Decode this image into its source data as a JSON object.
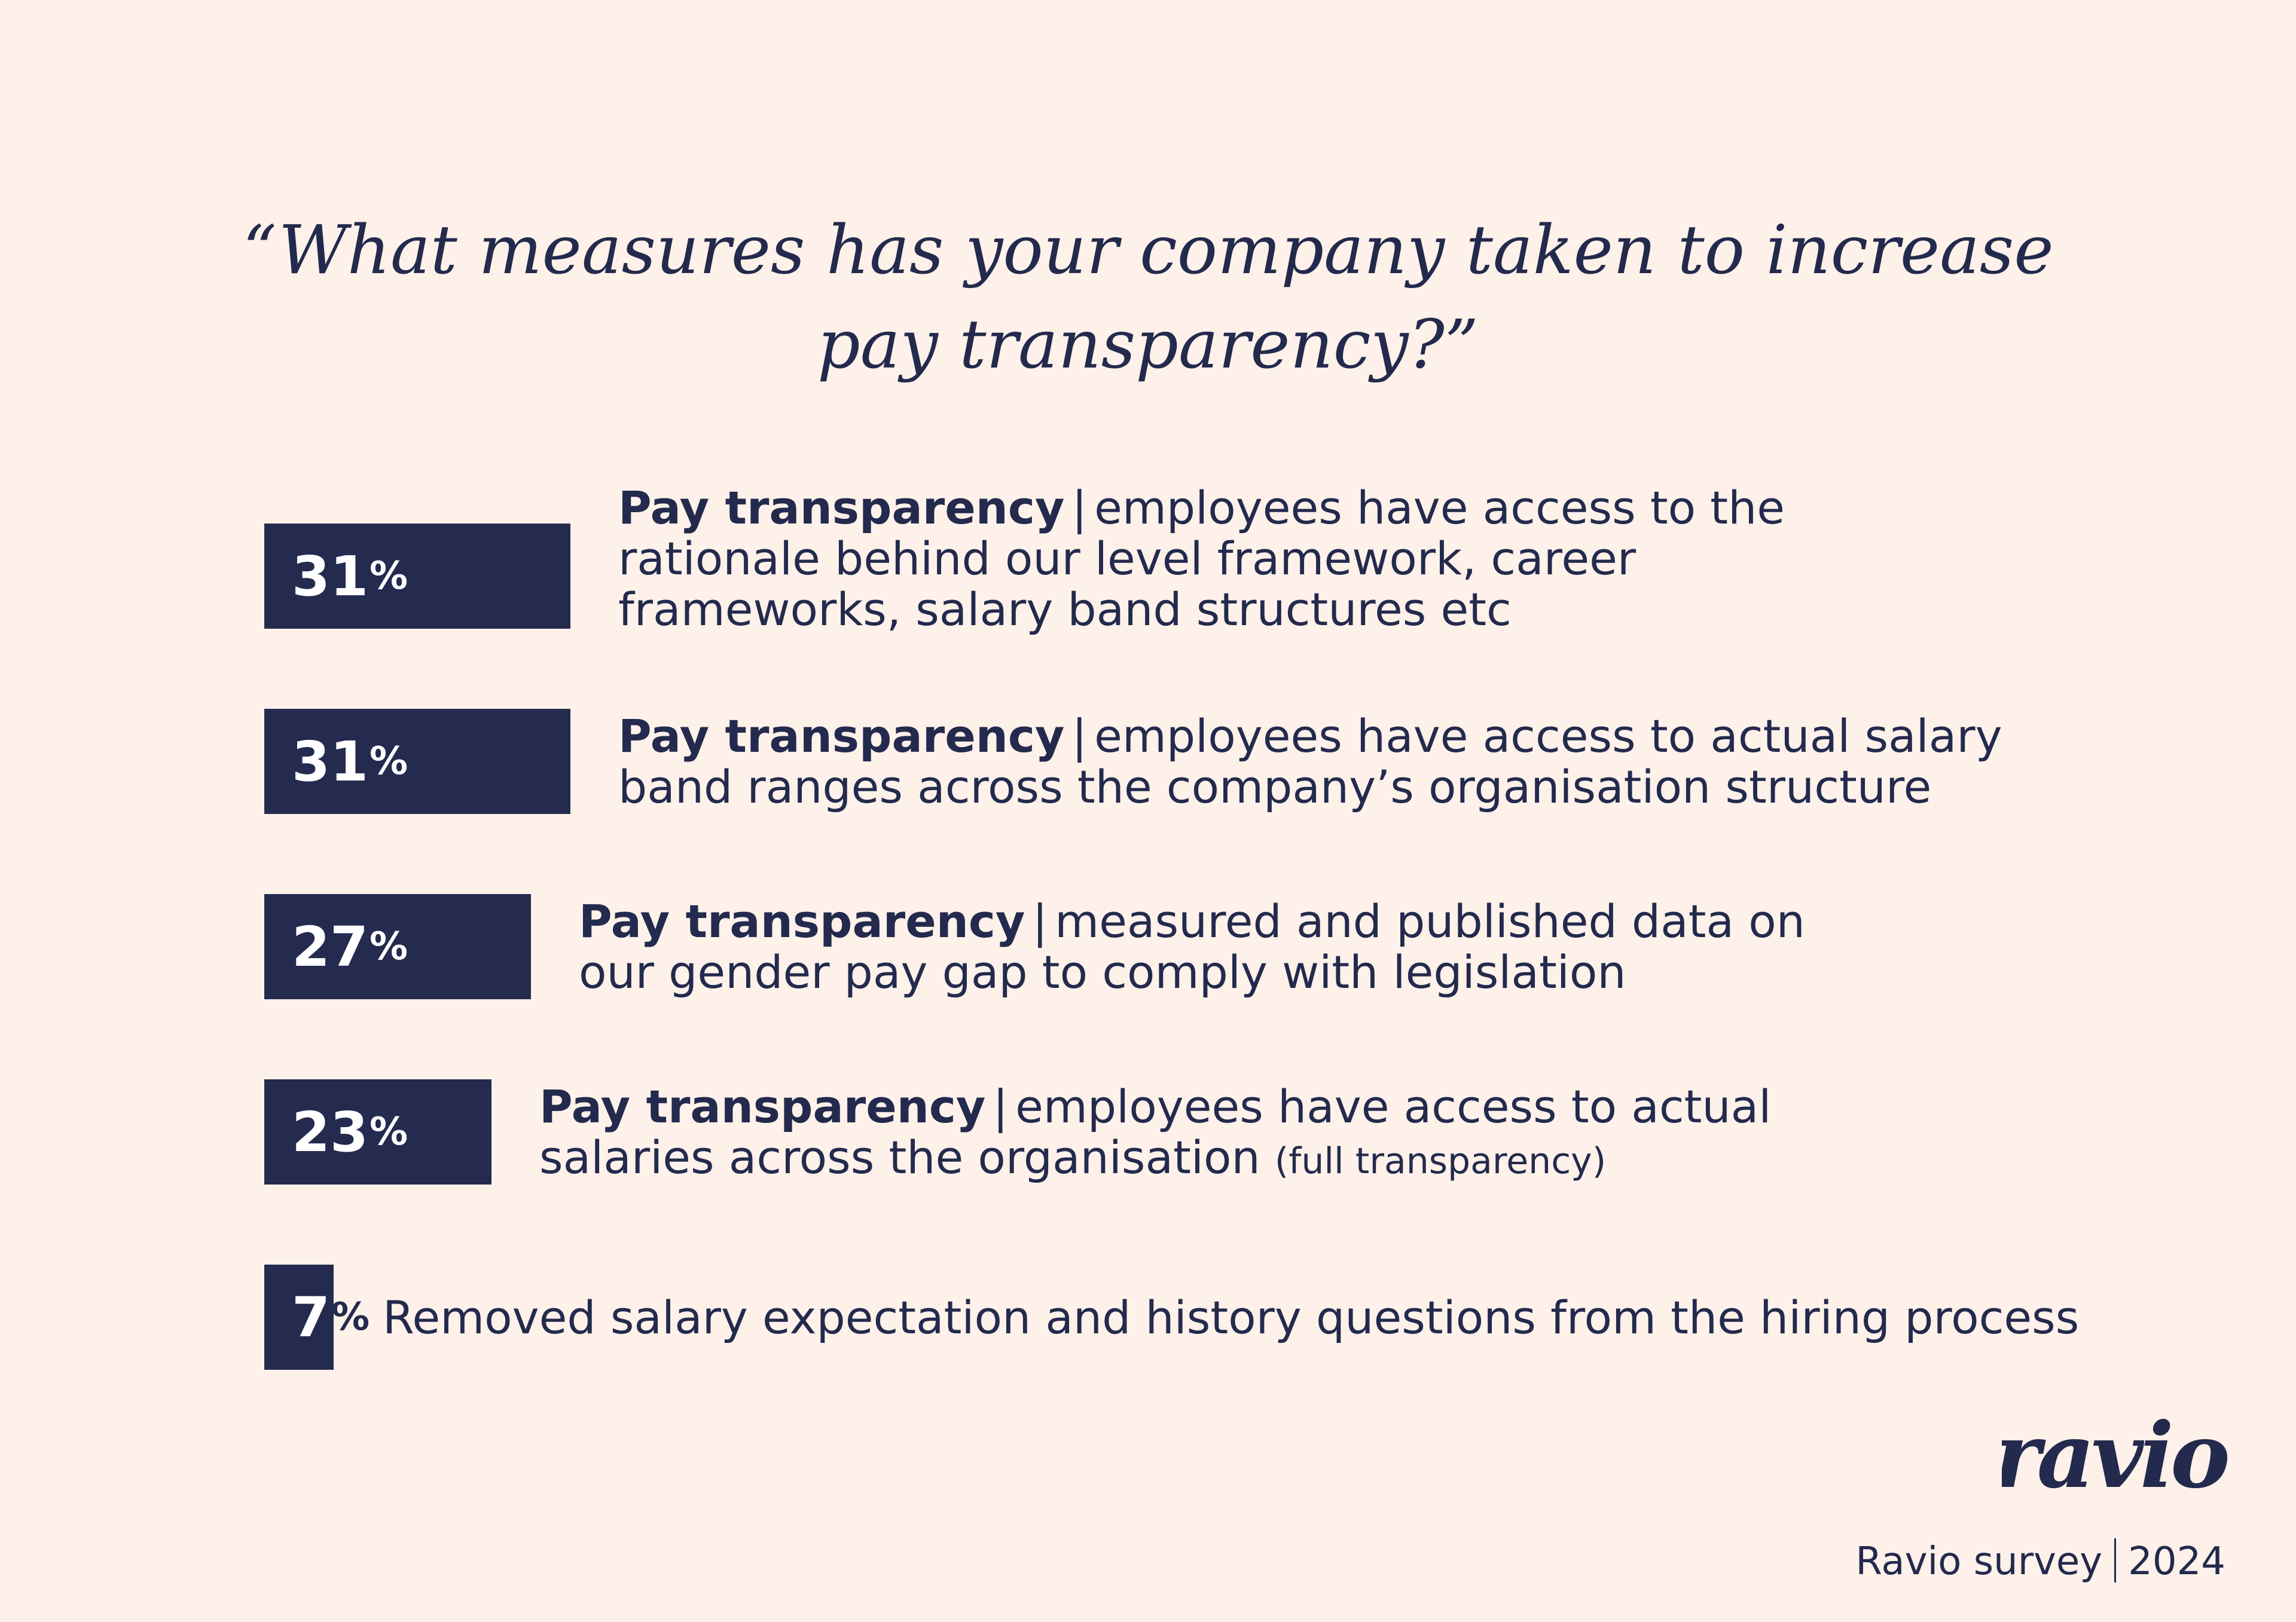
{
  "title_lines": [
    "“What measures has your company taken to increase",
    "pay transparency?”"
  ],
  "chart_data": {
    "type": "bar",
    "orientation": "horizontal",
    "unit": "%",
    "categories": [
      {
        "bold": "Pay transparency",
        "sep": "|",
        "lines": [
          "employees have access to the",
          "rationale behind our level framework, career",
          "frameworks, salary band structures etc"
        ],
        "note": ""
      },
      {
        "bold": "Pay transparency",
        "sep": "|",
        "lines": [
          "employees have access to actual salary",
          "band ranges across the company’s organisation structure"
        ],
        "note": ""
      },
      {
        "bold": "Pay transparency",
        "sep": "|",
        "lines": [
          "measured and published data on",
          "our gender pay gap to comply with legislation"
        ],
        "note": ""
      },
      {
        "bold": "Pay transparency",
        "sep": "|",
        "lines": [
          "employees have access to actual",
          "salaries across the organisation"
        ],
        "note": "(full transparency)"
      },
      {
        "bold": "",
        "sep": "",
        "lines": [
          "Removed salary expectation and history questions from the hiring process"
        ],
        "note": ""
      }
    ],
    "values": [
      31,
      31,
      27,
      23,
      7
    ],
    "value_labels": [
      "31",
      "31",
      "27",
      "23",
      "7"
    ],
    "bar_color": "#252b4f"
  },
  "brand": {
    "logo_text": "ravio",
    "survey": "Ravio survey",
    "year": "2024"
  },
  "colors": {
    "background": "#fdf1ea",
    "text": "#232a4d"
  }
}
